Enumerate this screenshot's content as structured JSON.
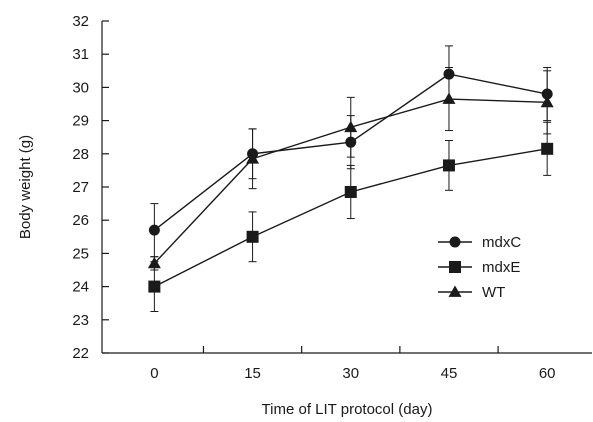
{
  "chart_data": {
    "type": "line",
    "title": "",
    "xlabel": "Time of LIT protocol (day)",
    "ylabel": "Body weight (g)",
    "x": [
      0,
      15,
      30,
      45,
      60
    ],
    "x_ticks": [
      "0",
      "15",
      "30",
      "45",
      "60"
    ],
    "xlim": [
      -8,
      67
    ],
    "ylim": [
      22,
      32
    ],
    "y_ticks": [
      22,
      23,
      24,
      25,
      26,
      27,
      28,
      29,
      30,
      31,
      32
    ],
    "grid": false,
    "legend_position": "right",
    "series": [
      {
        "name": "mdxC",
        "marker": "circle",
        "values": [
          25.7,
          28.0,
          28.35,
          30.4,
          29.8
        ],
        "errors": [
          0.8,
          0.75,
          0.8,
          0.85,
          0.8
        ]
      },
      {
        "name": "mdxE",
        "marker": "square",
        "values": [
          24.0,
          25.5,
          26.85,
          27.65,
          28.15
        ],
        "errors": [
          0.75,
          0.75,
          0.8,
          0.75,
          0.8
        ]
      },
      {
        "name": "WT",
        "marker": "triangle",
        "values": [
          24.7,
          27.85,
          28.8,
          29.65,
          29.55
        ],
        "errors": [
          0.2,
          0.9,
          0.9,
          0.95,
          0.95
        ]
      }
    ]
  },
  "colors": {
    "series": "#1a1a1a",
    "axis": "#1a1a1a"
  }
}
